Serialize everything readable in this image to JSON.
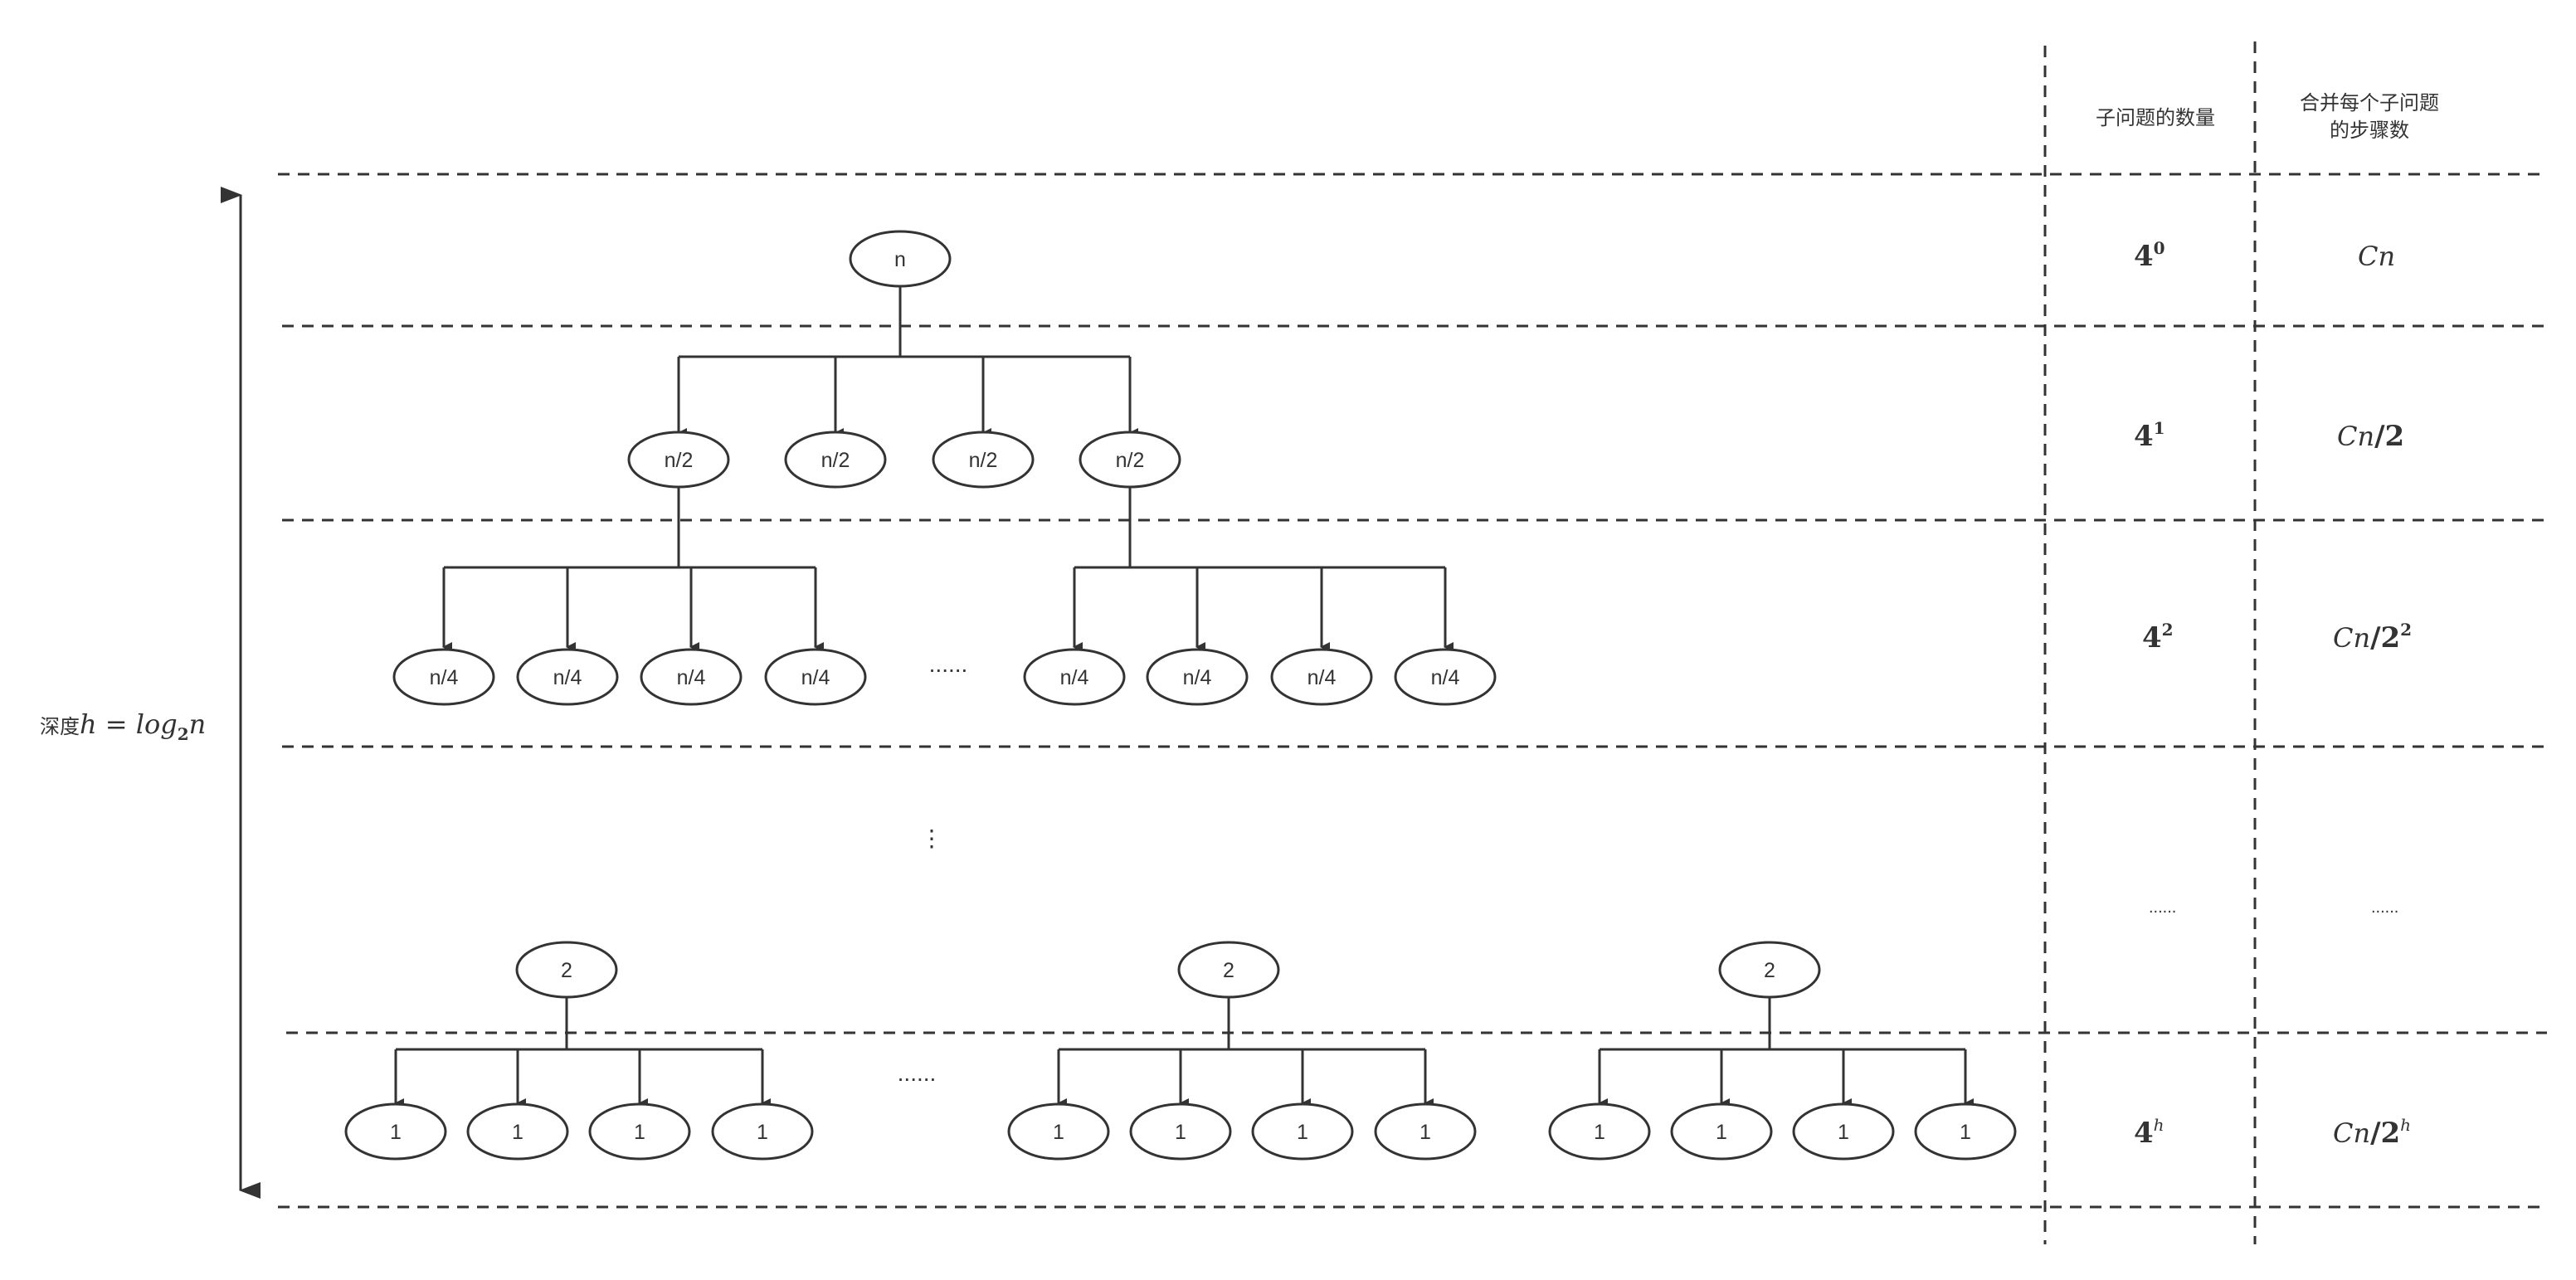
{
  "header": {
    "col_count_label": "子问题的数量",
    "col_steps_label_line1": "合并每个子问题",
    "col_steps_label_line2": "的步骤数"
  },
  "depth_label": {
    "prefix": "深度",
    "formula_h": "h",
    "formula_eq": " = ",
    "formula_log": "log",
    "formula_base": "2",
    "formula_n": "n"
  },
  "rows": [
    {
      "count_base": "4",
      "count_exp": "0",
      "steps_main": "Cn",
      "steps_div": "",
      "steps_exp": ""
    },
    {
      "count_base": "4",
      "count_exp": "1",
      "steps_main": "Cn",
      "steps_div": "/2",
      "steps_exp": ""
    },
    {
      "count_base": "4",
      "count_exp": "2",
      "steps_main": "Cn",
      "steps_div": "/2",
      "steps_exp": "2"
    },
    {
      "count_text": "......",
      "steps_text": "......"
    },
    {
      "count_base": "4",
      "count_exp": "h",
      "steps_main": "Cn",
      "steps_div": "/2",
      "steps_exp": "h"
    }
  ],
  "tree": {
    "root": "n",
    "level1": [
      "n/2",
      "n/2",
      "n/2",
      "n/2"
    ],
    "level2_left": [
      "n/4",
      "n/4",
      "n/4",
      "n/4"
    ],
    "level2_ellipsis": "......",
    "level2_right": [
      "n/4",
      "n/4",
      "n/4",
      "n/4"
    ],
    "vertical_ellipsis": "⋮",
    "level_last_parent": [
      "2",
      "2",
      "2"
    ],
    "leaves_group1": [
      "1",
      "1",
      "1",
      "1"
    ],
    "leaves_ellipsis": "......",
    "leaves_group2": [
      "1",
      "1",
      "1",
      "1"
    ],
    "leaves_group3": [
      "1",
      "1",
      "1",
      "1"
    ]
  },
  "colors": {
    "stroke": "#333333",
    "background": "#ffffff"
  }
}
